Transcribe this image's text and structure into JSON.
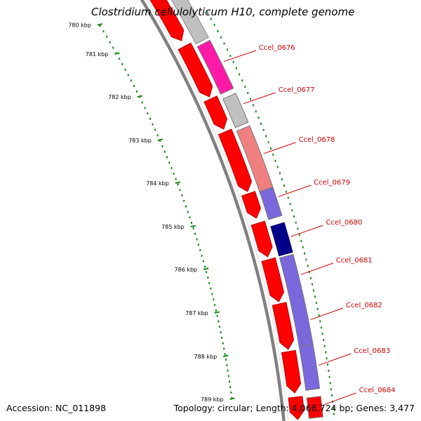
{
  "title": "Clostridium cellulolyticum H10, complete genome",
  "footer": {
    "accession": "Accession: NC_011898",
    "summary": "Topology: circular; Length: 4,068,724 bp; Genes: 3,477"
  },
  "colors": {
    "backbone": "#808080",
    "tick": "#1a8a1a",
    "forward_cds": "#ff0000",
    "label": "#cc0000"
  },
  "kbp_labels": [
    "780 kbp",
    "781 kbp",
    "782 kbp",
    "783 kbp",
    "784 kbp",
    "785 kbp",
    "786 kbp",
    "787 kbp",
    "788 kbp",
    "789 kbp"
  ],
  "genes": [
    {
      "label": "Ccel_0676",
      "color": "#ff1aa8"
    },
    {
      "label": "Ccel_0677",
      "color": "#c0c0c0"
    },
    {
      "label": "Ccel_0678",
      "color": "#f08080"
    },
    {
      "label": "Ccel_0679",
      "color": "#7b68dd"
    },
    {
      "label": "Ccel_0680",
      "color": "#00008b"
    },
    {
      "label": "Ccel_0681",
      "color": "#7b68dd"
    },
    {
      "label": "Ccel_0682",
      "color": "#7b68dd"
    },
    {
      "label": "Ccel_0683",
      "color": "#7b68dd"
    },
    {
      "label": "Ccel_0684",
      "color": "#ff0000"
    }
  ]
}
